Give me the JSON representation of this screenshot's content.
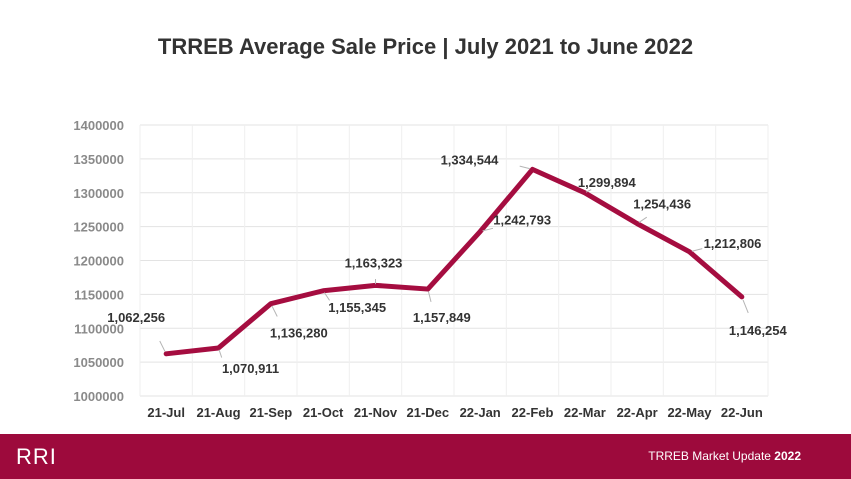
{
  "chart_data": {
    "type": "line",
    "title": "TRREB Average Sale Price | July 2021 to June 2022",
    "categories": [
      "21-Jul",
      "21-Aug",
      "21-Sep",
      "21-Oct",
      "21-Nov",
      "21-Dec",
      "22-Jan",
      "22-Feb",
      "22-Mar",
      "22-Apr",
      "22-May",
      "22-Jun"
    ],
    "values": [
      1062256,
      1070911,
      1136280,
      1155345,
      1163323,
      1157849,
      1242793,
      1334544,
      1299894,
      1254436,
      1212806,
      1146254
    ],
    "data_labels": [
      "1,062,256",
      "1,070,911",
      "1,136,280",
      "1,155,345",
      "1,163,323",
      "1,157,849",
      "1,242,793",
      "1,334,544",
      "1,299,894",
      "1,254,436",
      "1,212,806",
      "1,146,254"
    ],
    "yticks": [
      1000000,
      1050000,
      1100000,
      1150000,
      1200000,
      1250000,
      1300000,
      1350000,
      1400000
    ],
    "ylim": [
      1000000,
      1400000
    ],
    "grid": true,
    "line_color": "#a50d40"
  },
  "footer": {
    "logo_text": "RRI",
    "text_regular": "TRREB Market Update ",
    "text_bold": "2022",
    "background": "#9d0a3c"
  }
}
